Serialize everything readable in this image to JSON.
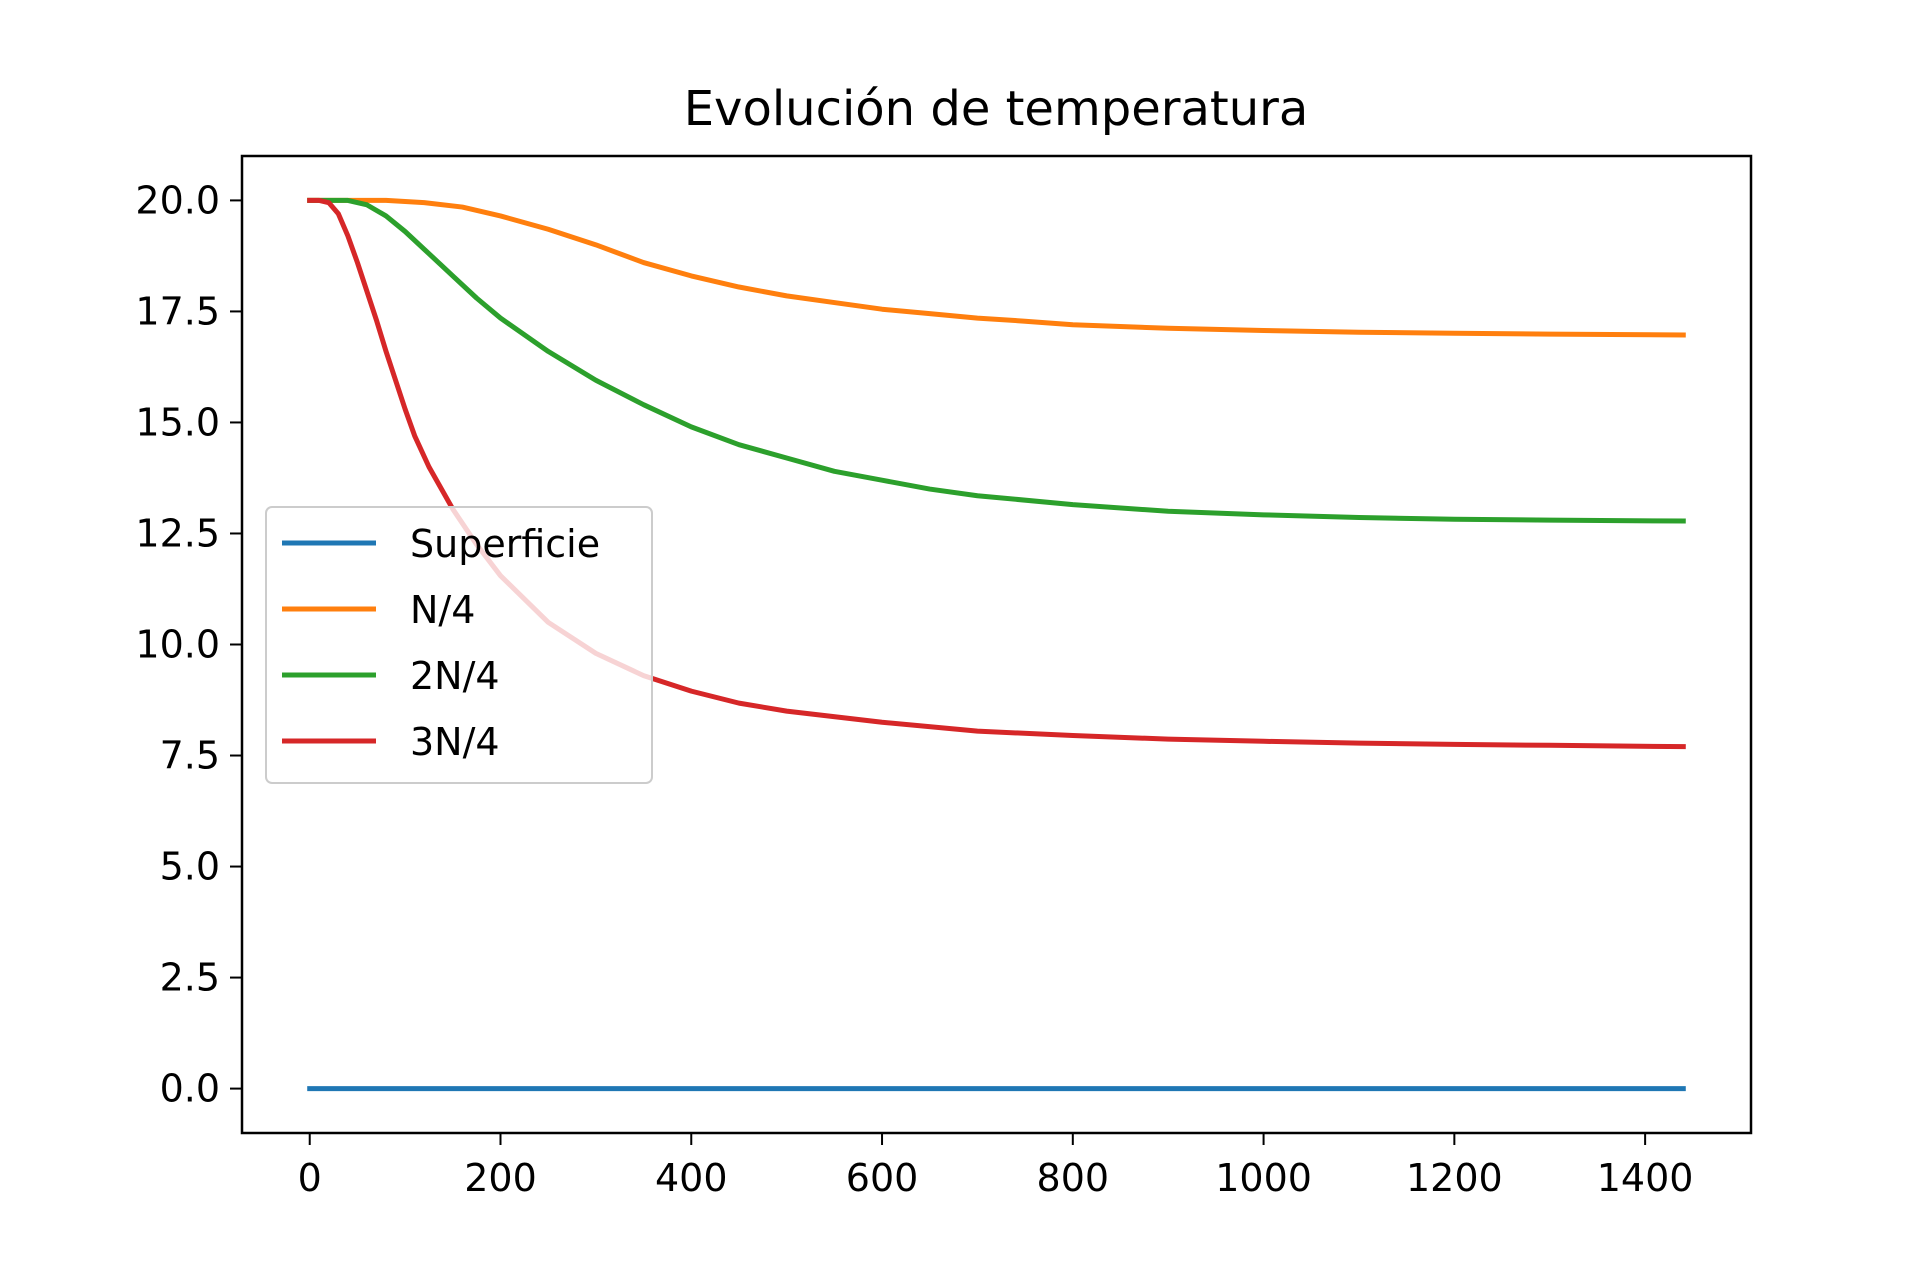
{
  "chart_data": {
    "type": "line",
    "title": "Evolución de temperatura",
    "xlabel": "",
    "ylabel": "",
    "xlim": [
      -71,
      1511
    ],
    "ylim": [
      -1.0,
      21.0
    ],
    "x_ticks": [
      0,
      200,
      400,
      600,
      800,
      1000,
      1200,
      1400
    ],
    "x_tick_labels": [
      "0",
      "200",
      "400",
      "600",
      "800",
      "1000",
      "1200",
      "1400"
    ],
    "y_ticks": [
      0,
      2.5,
      5,
      7.5,
      10,
      12.5,
      15,
      17.5,
      20
    ],
    "y_tick_labels": [
      "0.0",
      "2.5",
      "5.0",
      "7.5",
      "10.0",
      "12.5",
      "15.0",
      "17.5",
      "20.0"
    ],
    "grid": false,
    "legend": {
      "placement": "center-left"
    },
    "series": [
      {
        "name": "Superficie",
        "color": "#1f77b4",
        "x": [
          0,
          200,
          400,
          600,
          800,
          1000,
          1200,
          1440
        ],
        "y": [
          0,
          0,
          0,
          0,
          0,
          0,
          0,
          0
        ]
      },
      {
        "name": "N/4",
        "color": "#ff7f0e",
        "x": [
          0,
          40,
          80,
          120,
          160,
          200,
          250,
          300,
          350,
          400,
          450,
          500,
          550,
          600,
          650,
          700,
          750,
          800,
          900,
          1000,
          1100,
          1200,
          1300,
          1440
        ],
        "y": [
          20.0,
          20.0,
          20.0,
          19.95,
          19.85,
          19.65,
          19.35,
          19.0,
          18.6,
          18.3,
          18.05,
          17.85,
          17.7,
          17.55,
          17.45,
          17.35,
          17.28,
          17.2,
          17.12,
          17.07,
          17.03,
          17.01,
          16.99,
          16.97
        ]
      },
      {
        "name": "2N/4",
        "color": "#2ca02c",
        "x": [
          0,
          20,
          40,
          60,
          80,
          100,
          125,
          150,
          175,
          200,
          250,
          300,
          350,
          400,
          450,
          500,
          550,
          600,
          650,
          700,
          800,
          900,
          1000,
          1100,
          1200,
          1300,
          1440
        ],
        "y": [
          20.0,
          20.0,
          20.0,
          19.9,
          19.65,
          19.3,
          18.8,
          18.3,
          17.8,
          17.35,
          16.6,
          15.95,
          15.4,
          14.9,
          14.5,
          14.2,
          13.9,
          13.7,
          13.5,
          13.35,
          13.15,
          13.0,
          12.92,
          12.86,
          12.82,
          12.8,
          12.78
        ]
      },
      {
        "name": "3N/4",
        "color": "#d62728",
        "x": [
          0,
          10,
          20,
          30,
          40,
          50,
          60,
          70,
          80,
          90,
          100,
          110,
          125,
          150,
          175,
          200,
          250,
          300,
          350,
          400,
          450,
          500,
          600,
          700,
          800,
          900,
          1000,
          1100,
          1200,
          1300,
          1440
        ],
        "y": [
          20.0,
          20.0,
          19.95,
          19.7,
          19.2,
          18.6,
          17.95,
          17.3,
          16.6,
          15.95,
          15.3,
          14.7,
          14.0,
          13.05,
          12.25,
          11.55,
          10.5,
          9.8,
          9.3,
          8.95,
          8.68,
          8.5,
          8.25,
          8.05,
          7.95,
          7.87,
          7.82,
          7.78,
          7.75,
          7.73,
          7.7
        ]
      }
    ]
  }
}
